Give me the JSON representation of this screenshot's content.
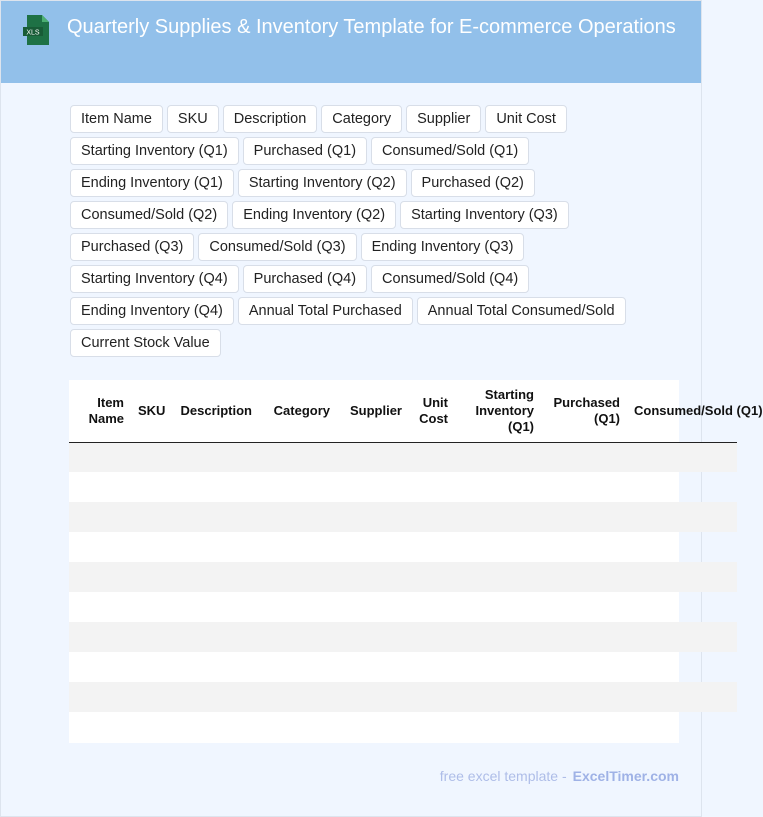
{
  "header": {
    "title": "Quarterly Supplies & Inventory Template for E-commerce Operations",
    "icon": "xls-file-icon",
    "icon_label": "XLS"
  },
  "fields": [
    "Item Name",
    "SKU",
    "Description",
    "Category",
    "Supplier",
    "Unit Cost",
    "Starting Inventory (Q1)",
    "Purchased (Q1)",
    "Consumed/Sold (Q1)",
    "Ending Inventory (Q1)",
    "Starting Inventory (Q2)",
    "Purchased (Q2)",
    "Consumed/Sold (Q2)",
    "Ending Inventory (Q2)",
    "Starting Inventory (Q3)",
    "Purchased (Q3)",
    "Consumed/Sold (Q3)",
    "Ending Inventory (Q3)",
    "Starting Inventory (Q4)",
    "Purchased (Q4)",
    "Consumed/Sold (Q4)",
    "Ending Inventory (Q4)",
    "Annual Total Purchased",
    "Annual Total Consumed/Sold",
    "Current Stock Value"
  ],
  "table": {
    "columns": [
      "Item Name",
      "SKU",
      "Description",
      "Category",
      "Supplier",
      "Unit Cost",
      "Starting Inventory (Q1)",
      "Purchased (Q1)",
      "Consumed/Sold (Q1)"
    ],
    "empty_rows": 10
  },
  "footer": {
    "text": "free excel template -",
    "link": "ExcelTimer.com"
  },
  "colors": {
    "header": "#92c0ea",
    "background": "#f0f6ff",
    "xls_icon": "#1e7145"
  }
}
